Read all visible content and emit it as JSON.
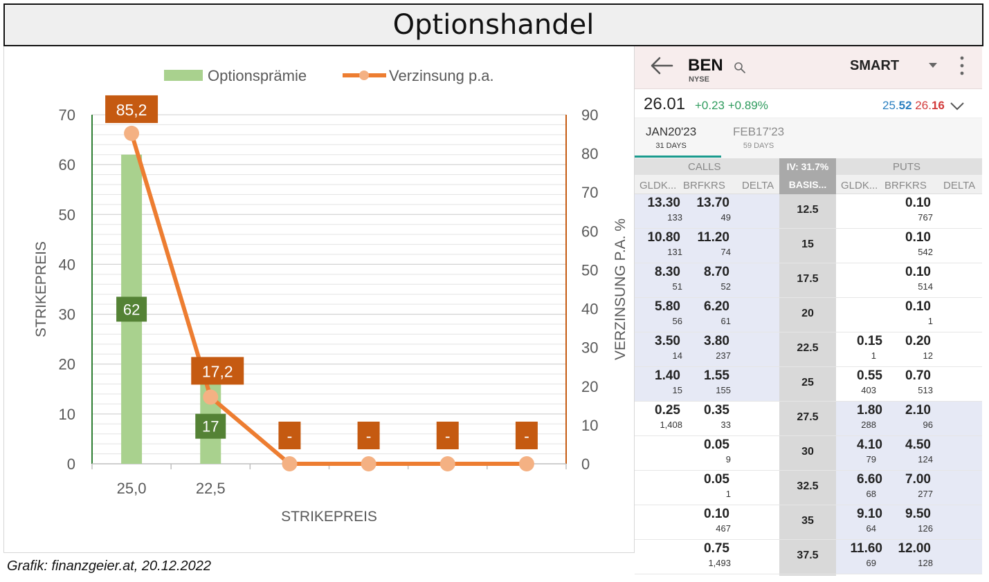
{
  "page_title": "Optionshandel",
  "credit": "Grafik: finanzgeier.at, 20.12.2022",
  "chart_data": {
    "type": "bar",
    "categories": [
      "25,0",
      "22,5",
      "",
      "",
      "",
      ""
    ],
    "series": [
      {
        "name": "Optionsprämie",
        "type": "bar",
        "axis": "left",
        "color": "#a9d18e",
        "values": [
          62,
          17,
          null,
          null,
          null,
          null
        ],
        "labels": [
          "62",
          "17",
          "",
          "",
          "",
          ""
        ]
      },
      {
        "name": "Verzinsung p.a.",
        "type": "line",
        "axis": "right",
        "color": "#ed7d31",
        "values": [
          85.2,
          17.2,
          0,
          0,
          0,
          0
        ],
        "labels": [
          "85,2",
          "17,2",
          "-",
          "-",
          "-",
          "-"
        ]
      }
    ],
    "xlabel": "STRIKEPREIS",
    "ylabel": "STRIKEPREIS",
    "y2label": "VERZINSUNG P.A. %",
    "ylim": [
      0,
      70
    ],
    "y2lim": [
      0,
      90
    ],
    "yticks": [
      "0",
      "10",
      "20",
      "30",
      "40",
      "50",
      "60",
      "70"
    ],
    "y2ticks": [
      "0",
      "10",
      "20",
      "30",
      "40",
      "50",
      "60",
      "70",
      "80",
      "90"
    ],
    "grid": true,
    "legend": "top"
  },
  "broker": {
    "symbol": "BEN",
    "exchange": "NYSE",
    "routing": "SMART",
    "last": "26.01",
    "change": "+0.23 +0.89%",
    "bid_a": "25.",
    "bid_b": "52",
    "ask_a": "26.",
    "ask_b": "16",
    "icons": {
      "back": "back-arrow-icon",
      "search": "search-icon",
      "dropdown": "chevron-down-icon",
      "more": "more-vertical-icon",
      "expand": "expand-chevron-icon"
    },
    "colors": {
      "accent": "#1a9b8e",
      "positive": "#2e9b5d",
      "bid": "#2a7fc0",
      "ask": "#d23a3a",
      "itm": "#e6e9f5"
    },
    "expiries": [
      {
        "label": "JAN20'23",
        "days": "31 DAYS",
        "active": true
      },
      {
        "label": "FEB17'23",
        "days": "59 DAYS",
        "active": false
      }
    ],
    "calls_label": "CALLS",
    "puts_label": "PUTS",
    "iv_label": "IV: 31.7%",
    "columns": {
      "bid": "GLDK...",
      "ask": "BRFKRS",
      "delta": "DELTA",
      "strike": "BASIS..."
    },
    "rows": [
      {
        "strike": "12.5",
        "call_bid": "13.30",
        "call_bid_size": "133",
        "call_ask": "13.70",
        "call_ask_size": "49",
        "put_bid": "",
        "put_bid_size": "",
        "put_ask": "0.10",
        "put_ask_size": "767",
        "call_itm": true,
        "put_itm": false
      },
      {
        "strike": "15",
        "call_bid": "10.80",
        "call_bid_size": "131",
        "call_ask": "11.20",
        "call_ask_size": "74",
        "put_bid": "",
        "put_bid_size": "",
        "put_ask": "0.10",
        "put_ask_size": "542",
        "call_itm": true,
        "put_itm": false
      },
      {
        "strike": "17.5",
        "call_bid": "8.30",
        "call_bid_size": "51",
        "call_ask": "8.70",
        "call_ask_size": "52",
        "put_bid": "",
        "put_bid_size": "",
        "put_ask": "0.10",
        "put_ask_size": "514",
        "call_itm": true,
        "put_itm": false
      },
      {
        "strike": "20",
        "call_bid": "5.80",
        "call_bid_size": "56",
        "call_ask": "6.20",
        "call_ask_size": "61",
        "put_bid": "",
        "put_bid_size": "",
        "put_ask": "0.10",
        "put_ask_size": "1",
        "call_itm": true,
        "put_itm": false
      },
      {
        "strike": "22.5",
        "call_bid": "3.50",
        "call_bid_size": "14",
        "call_ask": "3.80",
        "call_ask_size": "237",
        "put_bid": "0.15",
        "put_bid_size": "1",
        "put_ask": "0.20",
        "put_ask_size": "12",
        "call_itm": true,
        "put_itm": false
      },
      {
        "strike": "25",
        "call_bid": "1.40",
        "call_bid_size": "15",
        "call_ask": "1.55",
        "call_ask_size": "155",
        "put_bid": "0.55",
        "put_bid_size": "403",
        "put_ask": "0.70",
        "put_ask_size": "513",
        "call_itm": true,
        "put_itm": false
      },
      {
        "strike": "27.5",
        "call_bid": "0.25",
        "call_bid_size": "1,408",
        "call_ask": "0.35",
        "call_ask_size": "33",
        "put_bid": "1.80",
        "put_bid_size": "288",
        "put_ask": "2.10",
        "put_ask_size": "96",
        "call_itm": false,
        "put_itm": true
      },
      {
        "strike": "30",
        "call_bid": "",
        "call_bid_size": "",
        "call_ask": "0.05",
        "call_ask_size": "9",
        "put_bid": "4.10",
        "put_bid_size": "79",
        "put_ask": "4.50",
        "put_ask_size": "124",
        "call_itm": false,
        "put_itm": true
      },
      {
        "strike": "32.5",
        "call_bid": "",
        "call_bid_size": "",
        "call_ask": "0.05",
        "call_ask_size": "1",
        "put_bid": "6.60",
        "put_bid_size": "68",
        "put_ask": "7.00",
        "put_ask_size": "277",
        "call_itm": false,
        "put_itm": true
      },
      {
        "strike": "35",
        "call_bid": "",
        "call_bid_size": "",
        "call_ask": "0.10",
        "call_ask_size": "467",
        "put_bid": "9.10",
        "put_bid_size": "64",
        "put_ask": "9.50",
        "put_ask_size": "126",
        "call_itm": false,
        "put_itm": true
      },
      {
        "strike": "37.5",
        "call_bid": "",
        "call_bid_size": "",
        "call_ask": "0.75",
        "call_ask_size": "1,493",
        "put_bid": "11.60",
        "put_bid_size": "69",
        "put_ask": "12.00",
        "put_ask_size": "128",
        "call_itm": false,
        "put_itm": true
      }
    ]
  }
}
